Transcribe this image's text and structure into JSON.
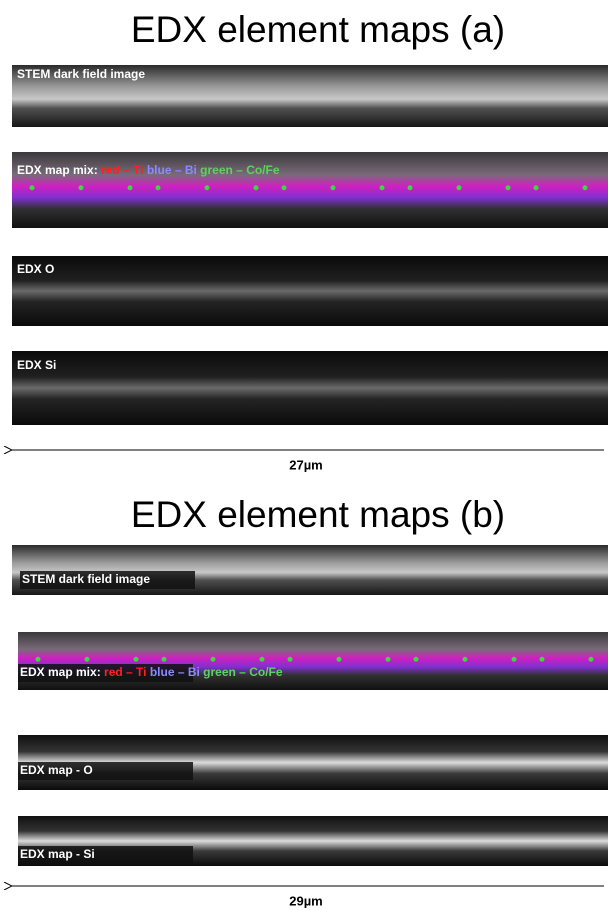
{
  "panels": [
    {
      "title": "EDX element maps (a)",
      "strips": [
        {
          "label": [
            {
              "text": "STEM dark field image",
              "color": "#ffffff"
            }
          ]
        },
        {
          "label": [
            {
              "text": "EDX map mix: ",
              "color": "#ffffff"
            },
            {
              "text": "red – Ti ",
              "color": "#ff2020"
            },
            {
              "text": "blue – Bi ",
              "color": "#8a8aff"
            },
            {
              "text": "green – Co/Fe",
              "color": "#5cd35c"
            }
          ]
        },
        {
          "label": [
            {
              "text": "EDX O",
              "color": "#ffffff"
            }
          ]
        },
        {
          "label": [
            {
              "text": "EDX Si",
              "color": "#ffffff"
            }
          ]
        }
      ],
      "scale": "27µm"
    },
    {
      "title": "EDX element maps (b)",
      "strips": [
        {
          "label": [
            {
              "text": "STEM dark field image",
              "color": "#ffffff"
            }
          ]
        },
        {
          "label": [
            {
              "text": "EDX map mix: ",
              "color": "#ffffff"
            },
            {
              "text": "red – Ti ",
              "color": "#ff2020"
            },
            {
              "text": "blue – Bi ",
              "color": "#8a8aff"
            },
            {
              "text": "green – Co/Fe",
              "color": "#5cd35c"
            }
          ]
        },
        {
          "label": [
            {
              "text": "EDX map - O",
              "color": "#ffffff"
            }
          ]
        },
        {
          "label": [
            {
              "text": "EDX map - Si",
              "color": "#ffffff"
            }
          ]
        }
      ],
      "scale": "29µm"
    }
  ]
}
